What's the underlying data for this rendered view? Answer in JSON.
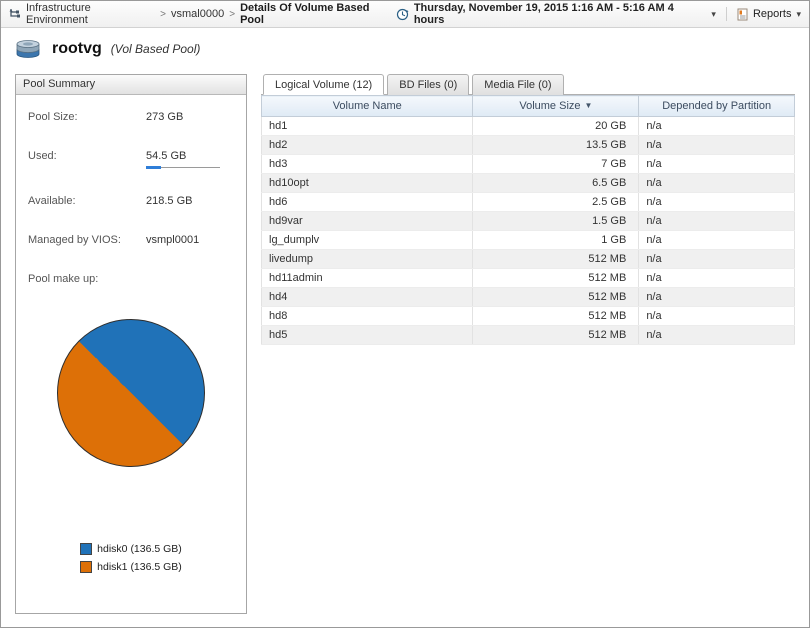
{
  "breadcrumb": {
    "items": [
      "Infrastructure Environment",
      "vsmal0000",
      "Details Of Volume Based Pool"
    ],
    "separator": ">"
  },
  "topbar": {
    "time_range": "Thursday, November 19, 2015 1:16 AM - 5:16 AM 4 hours",
    "reports_label": "Reports"
  },
  "header": {
    "title": "rootvg",
    "subtitle": "(Vol Based Pool)"
  },
  "pool_summary": {
    "panel_title": "Pool Summary",
    "pool_size_label": "Pool Size:",
    "pool_size_value": "273 GB",
    "used_label": "Used:",
    "used_value": "54.5 GB",
    "used_percent": 20,
    "available_label": "Available:",
    "available_value": "218.5 GB",
    "vios_label": "Managed by VIOS:",
    "vios_value": "vsmpl0001",
    "makeup_label": "Pool make up:",
    "pie": {
      "type": "pie",
      "slices": [
        {
          "label": "hdisk0 (136.5 GB)",
          "value": 136.5,
          "color": "#2072b8"
        },
        {
          "label": "hdisk1 (136.5 GB)",
          "value": 136.5,
          "color": "#dd7007"
        }
      ]
    }
  },
  "main": {
    "tabs": [
      {
        "label": "Logical Volume (12)",
        "active": true
      },
      {
        "label": "BD Files (0)",
        "active": false
      },
      {
        "label": "Media File (0)",
        "active": false
      }
    ],
    "table": {
      "columns": [
        {
          "label": "Volume Name",
          "align": "left"
        },
        {
          "label": "Volume Size",
          "align": "right",
          "sorted": "desc"
        },
        {
          "label": "Depended by Partition",
          "align": "left"
        }
      ],
      "rows": [
        [
          "hd1",
          "20 GB",
          "n/a"
        ],
        [
          "hd2",
          "13.5 GB",
          "n/a"
        ],
        [
          "hd3",
          "7 GB",
          "n/a"
        ],
        [
          "hd10opt",
          "6.5 GB",
          "n/a"
        ],
        [
          "hd6",
          "2.5 GB",
          "n/a"
        ],
        [
          "hd9var",
          "1.5 GB",
          "n/a"
        ],
        [
          "lg_dumplv",
          "1 GB",
          "n/a"
        ],
        [
          "livedump",
          "512 MB",
          "n/a"
        ],
        [
          "hd11admin",
          "512 MB",
          "n/a"
        ],
        [
          "hd4",
          "512 MB",
          "n/a"
        ],
        [
          "hd8",
          "512 MB",
          "n/a"
        ],
        [
          "hd5",
          "512 MB",
          "n/a"
        ]
      ]
    }
  }
}
